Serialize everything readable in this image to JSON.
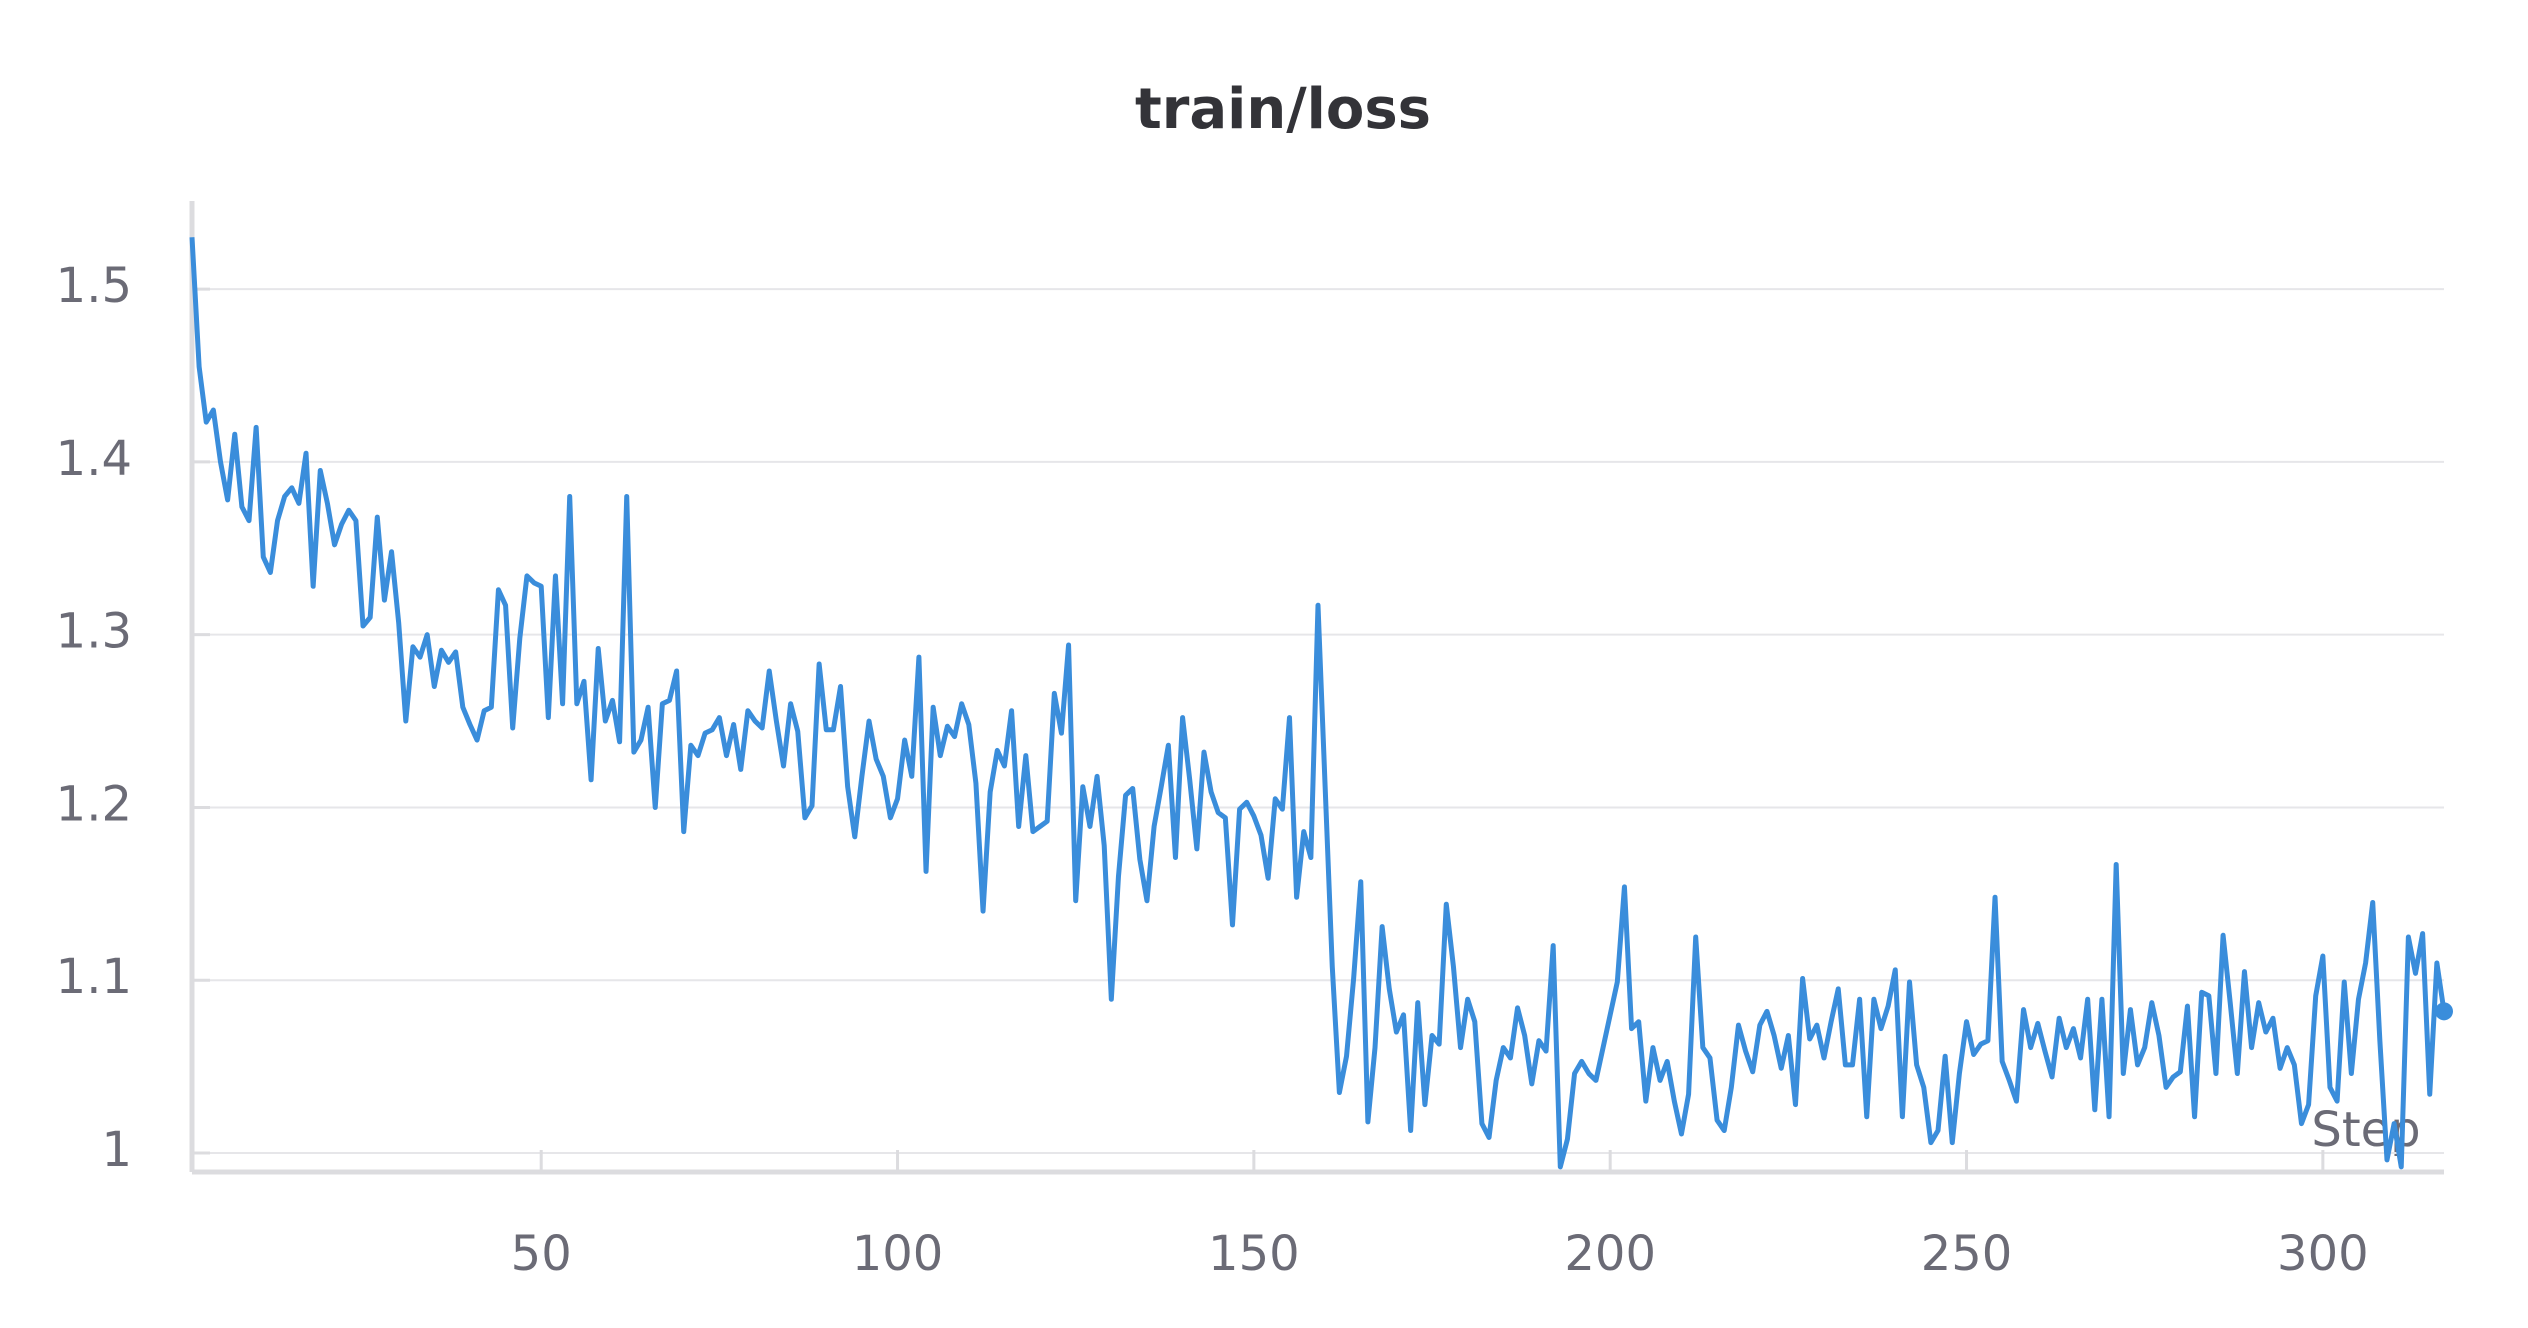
{
  "chart_data": {
    "type": "line",
    "title": "train/loss",
    "x_label": "Step",
    "x": [
      1,
      2,
      3,
      4,
      5,
      6,
      7,
      8,
      9,
      10,
      11,
      12,
      13,
      14,
      15,
      16,
      17,
      18,
      19,
      20,
      21,
      22,
      23,
      24,
      25,
      26,
      27,
      28,
      29,
      30,
      31,
      32,
      33,
      34,
      35,
      36,
      37,
      38,
      39,
      40,
      41,
      42,
      43,
      44,
      45,
      46,
      47,
      48,
      49,
      50,
      51,
      52,
      53,
      54,
      55,
      56,
      57,
      58,
      59,
      60,
      61,
      62,
      63,
      64,
      65,
      66,
      67,
      68,
      69,
      70,
      71,
      72,
      73,
      74,
      75,
      76,
      77,
      78,
      79,
      80,
      81,
      82,
      83,
      84,
      85,
      86,
      87,
      88,
      89,
      90,
      91,
      92,
      93,
      94,
      95,
      96,
      97,
      98,
      99,
      100,
      101,
      102,
      103,
      104,
      105,
      106,
      107,
      108,
      109,
      110,
      111,
      112,
      113,
      114,
      115,
      116,
      117,
      118,
      119,
      120,
      121,
      122,
      123,
      124,
      125,
      126,
      127,
      128,
      129,
      130,
      131,
      132,
      133,
      134,
      135,
      136,
      137,
      138,
      139,
      140,
      141,
      142,
      143,
      144,
      145,
      146,
      147,
      148,
      149,
      150,
      151,
      152,
      153,
      154,
      155,
      156,
      157,
      158,
      159,
      160,
      161,
      162,
      163,
      164,
      165,
      166,
      167,
      168,
      169,
      170,
      171,
      172,
      173,
      174,
      175,
      176,
      177,
      178,
      179,
      180,
      181,
      182,
      183,
      184,
      185,
      186,
      187,
      188,
      189,
      190,
      191,
      192,
      193,
      194,
      195,
      196,
      197,
      198,
      199,
      200,
      201,
      202,
      203,
      204,
      205,
      206,
      207,
      208,
      209,
      210,
      211,
      212,
      213,
      214,
      215,
      216,
      217,
      218,
      219,
      220,
      221,
      222,
      223,
      224,
      225,
      226,
      227,
      228,
      229,
      230,
      231,
      232,
      233,
      234,
      235,
      236,
      237,
      238,
      239,
      240,
      241,
      242,
      243,
      244,
      245,
      246,
      247,
      248,
      249,
      250,
      251,
      252,
      253,
      254,
      255,
      256,
      257,
      258,
      259,
      260,
      261,
      262,
      263,
      264,
      265,
      266,
      267,
      268,
      269,
      270,
      271,
      272,
      273,
      274,
      275,
      276,
      277,
      278,
      279,
      280,
      281,
      282,
      283,
      284,
      285,
      286,
      287,
      288,
      289,
      290,
      291,
      292,
      293,
      294,
      295,
      296,
      297,
      298,
      299,
      300,
      301,
      302,
      303,
      304,
      305,
      306,
      307,
      308,
      309,
      310,
      311,
      312,
      313,
      314,
      315,
      316,
      317
    ],
    "series": [
      {
        "name": "train/loss",
        "color": "#3a8ddb",
        "values": [
          1.53,
          1.455,
          1.423,
          1.43,
          1.4,
          1.378,
          1.416,
          1.374,
          1.366,
          1.42,
          1.345,
          1.336,
          1.366,
          1.38,
          1.385,
          1.376,
          1.405,
          1.328,
          1.395,
          1.376,
          1.352,
          1.364,
          1.372,
          1.366,
          1.305,
          1.31,
          1.368,
          1.32,
          1.348,
          1.307,
          1.25,
          1.293,
          1.287,
          1.3,
          1.27,
          1.291,
          1.284,
          1.29,
          1.258,
          1.248,
          1.239,
          1.256,
          1.258,
          1.326,
          1.317,
          1.246,
          1.298,
          1.334,
          1.33,
          1.328,
          1.252,
          1.334,
          1.26,
          1.38,
          1.26,
          1.273,
          1.216,
          1.292,
          1.25,
          1.262,
          1.238,
          1.38,
          1.232,
          1.239,
          1.258,
          1.2,
          1.26,
          1.262,
          1.279,
          1.186,
          1.236,
          1.23,
          1.243,
          1.245,
          1.252,
          1.23,
          1.248,
          1.222,
          1.256,
          1.25,
          1.246,
          1.279,
          1.25,
          1.224,
          1.26,
          1.244,
          1.194,
          1.201,
          1.283,
          1.245,
          1.245,
          1.27,
          1.212,
          1.183,
          1.218,
          1.25,
          1.228,
          1.218,
          1.194,
          1.205,
          1.239,
          1.218,
          1.287,
          1.163,
          1.258,
          1.23,
          1.247,
          1.241,
          1.26,
          1.248,
          1.214,
          1.14,
          1.209,
          1.233,
          1.224,
          1.256,
          1.189,
          1.23,
          1.186,
          1.189,
          1.192,
          1.266,
          1.243,
          1.294,
          1.146,
          1.212,
          1.189,
          1.218,
          1.178,
          1.089,
          1.16,
          1.207,
          1.211,
          1.17,
          1.146,
          1.189,
          1.212,
          1.236,
          1.171,
          1.252,
          1.216,
          1.176,
          1.232,
          1.209,
          1.197,
          1.194,
          1.132,
          1.199,
          1.203,
          1.195,
          1.184,
          1.159,
          1.205,
          1.199,
          1.252,
          1.148,
          1.186,
          1.171,
          1.317,
          1.212,
          1.108,
          1.035,
          1.056,
          1.101,
          1.157,
          1.018,
          1.061,
          1.131,
          1.095,
          1.07,
          1.08,
          1.013,
          1.087,
          1.028,
          1.068,
          1.063,
          1.144,
          1.108,
          1.061,
          1.089,
          1.076,
          1.017,
          1.009,
          1.042,
          1.061,
          1.055,
          1.084,
          1.068,
          1.04,
          1.065,
          1.059,
          1.12,
          0.992,
          1.008,
          1.046,
          1.053,
          1.046,
          1.042,
          1.061,
          1.08,
          1.099,
          1.154,
          1.072,
          1.076,
          1.03,
          1.061,
          1.042,
          1.053,
          1.03,
          1.011,
          1.034,
          1.125,
          1.061,
          1.055,
          1.019,
          1.013,
          1.038,
          1.074,
          1.059,
          1.047,
          1.074,
          1.082,
          1.068,
          1.049,
          1.068,
          1.028,
          1.101,
          1.066,
          1.074,
          1.055,
          1.076,
          1.095,
          1.051,
          1.051,
          1.089,
          1.021,
          1.089,
          1.072,
          1.085,
          1.106,
          1.021,
          1.099,
          1.051,
          1.038,
          1.006,
          1.013,
          1.056,
          1.006,
          1.046,
          1.076,
          1.057,
          1.063,
          1.065,
          1.148,
          1.053,
          1.042,
          1.03,
          1.083,
          1.061,
          1.075,
          1.059,
          1.044,
          1.078,
          1.061,
          1.072,
          1.055,
          1.089,
          1.025,
          1.089,
          1.021,
          1.167,
          1.046,
          1.083,
          1.051,
          1.061,
          1.087,
          1.068,
          1.038,
          1.044,
          1.047,
          1.085,
          1.021,
          1.093,
          1.091,
          1.046,
          1.126,
          1.087,
          1.046,
          1.105,
          1.061,
          1.087,
          1.07,
          1.078,
          1.049,
          1.061,
          1.051,
          1.017,
          1.028,
          1.091,
          1.114,
          1.038,
          1.03,
          1.099,
          1.046,
          1.089,
          1.11,
          1.145,
          1.065,
          0.996,
          1.017,
          0.992,
          1.125,
          1.104,
          1.127,
          1.034,
          1.11,
          1.082
        ]
      }
    ],
    "xlim": [
      1,
      317
    ],
    "xticks": [
      50,
      100,
      150,
      200,
      250,
      300
    ],
    "ylim": [
      0.989,
      1.551
    ],
    "yticks": [
      1,
      1.1,
      1.2,
      1.3,
      1.4,
      1.5
    ],
    "grid": true
  }
}
